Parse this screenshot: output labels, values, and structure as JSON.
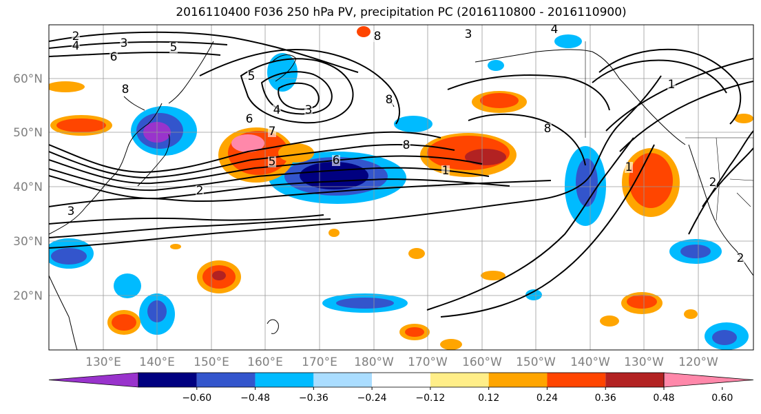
{
  "title": "2016110400 F036 250 hPa PV, precipitation PC (2016110800 - 2016110900)",
  "map": {
    "lat_labels": [
      "60°N",
      "50°N",
      "40°N",
      "30°N",
      "20°N"
    ],
    "lon_labels": [
      "130°E",
      "140°E",
      "150°E",
      "160°E",
      "170°E",
      "180°W",
      "170°W",
      "160°W",
      "150°W",
      "140°W",
      "130°W",
      "120°W"
    ],
    "contour_labels": [
      "2",
      "3",
      "4",
      "5",
      "6",
      "8",
      "5",
      "4",
      "3",
      "6",
      "8",
      "7",
      "5",
      "6",
      "2",
      "8",
      "8",
      "1",
      "2",
      "3",
      "4",
      "8",
      "1",
      "1",
      "2",
      "3"
    ]
  },
  "colorbar": {
    "ticks": [
      "−0.60",
      "−0.48",
      "−0.36",
      "−0.24",
      "−0.12",
      "0.12",
      "0.24",
      "0.36",
      "0.48",
      "0.60"
    ],
    "colors": [
      "#9933cc",
      "#000080",
      "#3355cc",
      "#00bbff",
      "#aaddff",
      "#ffffff",
      "#ffee88",
      "#ffa500",
      "#ff4500",
      "#b22222",
      "#ff88aa"
    ]
  }
}
